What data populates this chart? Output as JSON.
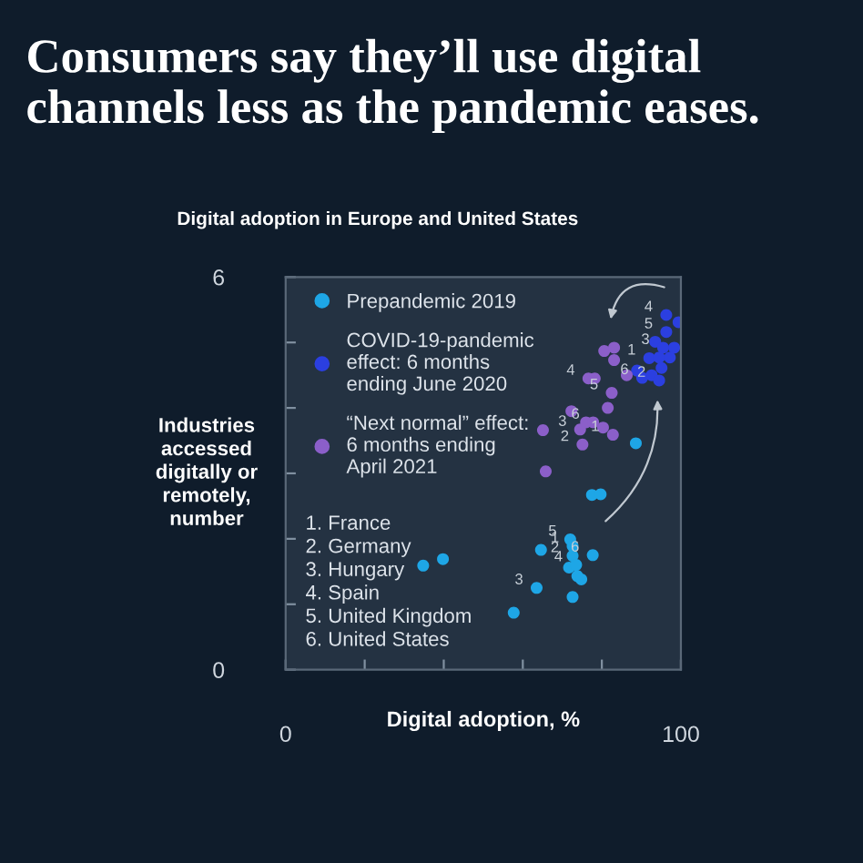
{
  "chart_data": {
    "type": "scatter",
    "title": "Consumers say they’ll use digital channels less as the pandemic eases.",
    "subtitle": "Digital adoption in Europe and United States",
    "xlabel": "Digital adoption, %",
    "ylabel": "Industries\naccessed\ndigitally or\nremotely,\nnumber",
    "xlim": [
      0,
      100
    ],
    "ylim": [
      0,
      6
    ],
    "xticks": [
      {
        "value": 0,
        "label": "0"
      },
      {
        "value": 20,
        "label": null
      },
      {
        "value": 40,
        "label": null
      },
      {
        "value": 60,
        "label": null
      },
      {
        "value": 80,
        "label": null
      },
      {
        "value": 100,
        "label": "100"
      }
    ],
    "yticks": [
      {
        "value": 0,
        "label": "0"
      },
      {
        "value": 1,
        "label": null
      },
      {
        "value": 2,
        "label": null
      },
      {
        "value": 3,
        "label": null
      },
      {
        "value": 4,
        "label": null
      },
      {
        "value": 5,
        "label": null
      },
      {
        "value": 6,
        "label": "6"
      }
    ],
    "grid": false,
    "legend": "top left",
    "marker": "circle",
    "series": [
      {
        "name": "Prepandemic 2019",
        "color": "#1ea6e6",
        "x": [
          34.8,
          39.8,
          57.7,
          63.5,
          64.6,
          72.0,
          72.6,
          72.6,
          71.7,
          73.5,
          73.8,
          74.8,
          72.6,
          77.7,
          77.5,
          79.7,
          88.6
        ],
        "values": [
          1.59,
          1.69,
          0.87,
          1.25,
          1.83,
          1.99,
          1.89,
          1.74,
          1.56,
          1.6,
          1.43,
          1.38,
          1.11,
          1.75,
          2.67,
          2.68,
          3.46
        ]
      },
      {
        "name": "COVID-19-pandemic\neffect: 6 months\nending June 2020",
        "color": "#2b3fe0",
        "x": [
          96.3,
          99.4,
          96.3,
          93.5,
          95.5,
          98.3,
          92.0,
          94.5,
          97.2,
          88.9,
          90.2,
          92.6,
          95.1,
          94.5
        ],
        "values": [
          5.42,
          5.31,
          5.16,
          5.01,
          4.92,
          4.92,
          4.76,
          4.77,
          4.77,
          4.57,
          4.46,
          4.5,
          4.61,
          4.42
        ]
      },
      {
        "name": "“Next normal” effect:\n6 months ending\nApril 2021",
        "color": "#8b5fc9",
        "x": [
          65.1,
          65.8,
          72.3,
          74.5,
          75.1,
          76.0,
          77.8,
          80.3,
          82.8,
          81.5,
          82.5,
          76.6,
          78.2,
          80.6,
          83.1,
          83.1,
          86.3
        ],
        "values": [
          3.66,
          3.03,
          3.95,
          3.67,
          3.44,
          3.78,
          3.78,
          3.7,
          3.59,
          4.0,
          4.23,
          4.45,
          4.45,
          4.87,
          4.92,
          4.73,
          4.5
        ]
      }
    ],
    "annotations": [
      "1. France\n2. Germany\n3. Hungary\n4. Spain\n5. United Kingdom\n6. United States",
      {
        "text": "5",
        "x": 72.0,
        "y": 1.99
      },
      {
        "text": "1",
        "x": 72.6,
        "y": 1.89
      },
      {
        "text": "2",
        "x": 72.6,
        "y": 1.74
      },
      {
        "text": "6",
        "x": 77.7,
        "y": 1.75
      },
      {
        "text": "4",
        "x": 73.5,
        "y": 1.6
      },
      {
        "text": "3",
        "x": 63.5,
        "y": 1.25
      },
      {
        "text": "4",
        "x": 76.6,
        "y": 4.45
      },
      {
        "text": "6",
        "x": 77.8,
        "y": 3.78
      },
      {
        "text": "3",
        "x": 74.5,
        "y": 3.67
      },
      {
        "text": "2",
        "x": 75.1,
        "y": 3.44
      },
      {
        "text": "1",
        "x": 82.8,
        "y": 3.59
      },
      {
        "text": "5",
        "x": 82.5,
        "y": 4.23
      },
      {
        "text": "4",
        "x": 96.3,
        "y": 5.42
      },
      {
        "text": "5",
        "x": 96.3,
        "y": 5.16
      },
      {
        "text": "3",
        "x": 95.5,
        "y": 4.92
      },
      {
        "text": "1",
        "x": 92.0,
        "y": 4.76
      },
      {
        "text": "6",
        "x": 90.2,
        "y": 4.46
      },
      {
        "text": "2",
        "x": 94.5,
        "y": 4.42
      }
    ]
  }
}
